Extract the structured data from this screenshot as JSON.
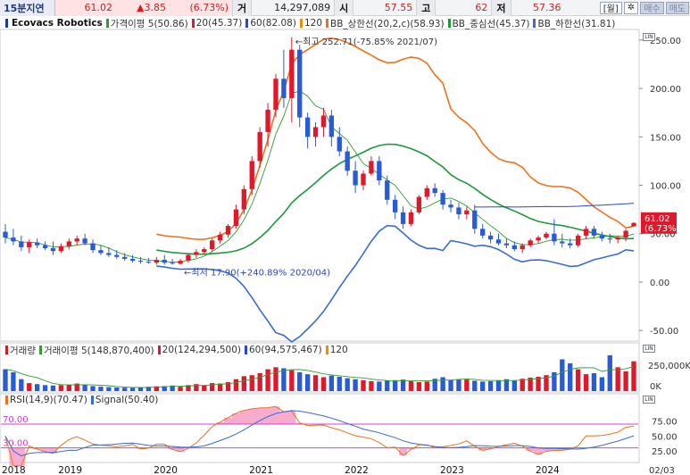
{
  "header": {
    "period": "15분지연",
    "price": "61.02",
    "change": "▲3.85",
    "change_pct": "(6.73%)",
    "volume_label": "거",
    "volume": "14,297,089",
    "open_label": "시",
    "open": "57.55",
    "high_label": "고",
    "high": "62",
    "low_label": "저",
    "low": "57.36",
    "period_button": "[월]",
    "settings_icon": "gear-icon",
    "buy_button": "매수",
    "sell_button": "매도"
  },
  "price_legend": {
    "title": "Ecovacs Robotics",
    "items": [
      {
        "label": "가격이평 5(50.86)",
        "color": "#2e9e2e"
      },
      {
        "label": "20(45.37)",
        "color": "#e0182b"
      },
      {
        "label": "60(82.08)",
        "color": "#2a44d6"
      },
      {
        "label": "120",
        "color": "#f08c00"
      },
      {
        "label": "BB_상한선(20,2,c)(58.93)",
        "color": "#f07020"
      },
      {
        "label": "BB_중심선(45.37)",
        "color": "#1b9a3a"
      },
      {
        "label": "BB_하한선(31.81)",
        "color": "#3a6ad8"
      }
    ]
  },
  "volume_legend": {
    "items": [
      {
        "label": "거래량",
        "color": "#d21f1f"
      },
      {
        "label": "거래이평 5(148,870,400)",
        "color": "#2e9e2e"
      },
      {
        "label": "20(124,294,500)",
        "color": "#e0182b"
      },
      {
        "label": "60(94,575,467)",
        "color": "#2a44d6"
      },
      {
        "label": "120",
        "color": "#f08c00"
      }
    ]
  },
  "rsi_legend": {
    "items": [
      {
        "label": "RSI(14,9)(70.47)",
        "color": "#f07020"
      },
      {
        "label": "Signal(50.40)",
        "color": "#3a6ad8"
      }
    ]
  },
  "annotations": {
    "high": "←최고 252.71(-75.85% 2021/07)",
    "low": "←최저 17.90(+240.89% 2020/04)",
    "current_price": "61.02",
    "current_pct": "(6.73%)"
  },
  "axes": {
    "price_ticks": [
      "250.00",
      "200.00",
      "150.00",
      "100.00",
      "50.00",
      "0.00",
      "-50.00"
    ],
    "volume_ticks": [
      "250,000K",
      "0K"
    ],
    "rsi_ticks": [
      "75.00",
      "50.00",
      "25.00"
    ],
    "rsi_levels": [
      "70.00",
      "30.00"
    ],
    "years": [
      "2018",
      "2019",
      "2020",
      "2021",
      "2022",
      "2023",
      "2024"
    ],
    "date_end": "02/03",
    "axis_buttons": [
      "LIN",
      "LIN",
      "LIN"
    ]
  },
  "chart_data": {
    "type": "candlestick",
    "title": "Ecovacs Robotics",
    "interval": "monthly",
    "start": "2018-05",
    "y_range": [
      -60,
      260
    ],
    "candles": [
      [
        52,
        60,
        40,
        46
      ],
      [
        46,
        55,
        38,
        42
      ],
      [
        42,
        48,
        32,
        36
      ],
      [
        36,
        44,
        30,
        41
      ],
      [
        41,
        45,
        35,
        38
      ],
      [
        38,
        42,
        33,
        35
      ],
      [
        35,
        42,
        28,
        32
      ],
      [
        32,
        40,
        30,
        37
      ],
      [
        37,
        45,
        34,
        42
      ],
      [
        42,
        48,
        38,
        45
      ],
      [
        45,
        50,
        38,
        40
      ],
      [
        40,
        44,
        30,
        33
      ],
      [
        33,
        38,
        28,
        30
      ],
      [
        30,
        36,
        26,
        28
      ],
      [
        28,
        33,
        24,
        26
      ],
      [
        26,
        30,
        22,
        24
      ],
      [
        24,
        28,
        20,
        22
      ],
      [
        22,
        26,
        19,
        21
      ],
      [
        21,
        25,
        19,
        20
      ],
      [
        20,
        26,
        18,
        23
      ],
      [
        23,
        28,
        18,
        20
      ],
      [
        20,
        24,
        18,
        19
      ],
      [
        19,
        24,
        17.9,
        22
      ],
      [
        22,
        30,
        20,
        28
      ],
      [
        28,
        34,
        25,
        31
      ],
      [
        31,
        36,
        29,
        34
      ],
      [
        34,
        45,
        32,
        43
      ],
      [
        43,
        52,
        40,
        49
      ],
      [
        49,
        60,
        46,
        58
      ],
      [
        58,
        80,
        55,
        75
      ],
      [
        75,
        100,
        70,
        96
      ],
      [
        96,
        130,
        90,
        125
      ],
      [
        125,
        160,
        118,
        155
      ],
      [
        155,
        185,
        140,
        178
      ],
      [
        178,
        215,
        170,
        210
      ],
      [
        210,
        240,
        180,
        190
      ],
      [
        190,
        252.71,
        165,
        240
      ],
      [
        240,
        245,
        160,
        170
      ],
      [
        170,
        175,
        138,
        150
      ],
      [
        150,
        165,
        140,
        160
      ],
      [
        160,
        180,
        150,
        172
      ],
      [
        172,
        178,
        140,
        150
      ],
      [
        150,
        160,
        130,
        135
      ],
      [
        135,
        140,
        110,
        115
      ],
      [
        115,
        125,
        92,
        100
      ],
      [
        100,
        115,
        95,
        112
      ],
      [
        112,
        130,
        110,
        125
      ],
      [
        125,
        130,
        100,
        105
      ],
      [
        105,
        110,
        80,
        85
      ],
      [
        85,
        90,
        65,
        72
      ],
      [
        72,
        78,
        55,
        60
      ],
      [
        60,
        75,
        58,
        72
      ],
      [
        72,
        90,
        70,
        88
      ],
      [
        88,
        100,
        85,
        97
      ],
      [
        97,
        102,
        88,
        92
      ],
      [
        92,
        95,
        75,
        80
      ],
      [
        80,
        85,
        72,
        77
      ],
      [
        77,
        82,
        65,
        70
      ],
      [
        70,
        78,
        65,
        74
      ],
      [
        74,
        80,
        50,
        55
      ],
      [
        55,
        60,
        45,
        48
      ],
      [
        48,
        52,
        40,
        44
      ],
      [
        44,
        50,
        38,
        40
      ],
      [
        40,
        45,
        35,
        38
      ],
      [
        38,
        42,
        32,
        34
      ],
      [
        34,
        40,
        30,
        38
      ],
      [
        38,
        45,
        36,
        43
      ],
      [
        43,
        48,
        40,
        46
      ],
      [
        46,
        52,
        44,
        50
      ],
      [
        50,
        65,
        38,
        42
      ],
      [
        42,
        50,
        36,
        40
      ],
      [
        40,
        45,
        35,
        38
      ],
      [
        38,
        50,
        36,
        48
      ],
      [
        48,
        58,
        45,
        55
      ],
      [
        55,
        58,
        45,
        48
      ],
      [
        48,
        52,
        42,
        45
      ],
      [
        45,
        50,
        40,
        44
      ],
      [
        44,
        48,
        40,
        46
      ],
      [
        46,
        55,
        42,
        53
      ],
      [
        57.55,
        62,
        57.36,
        61.02
      ]
    ],
    "ma5": {
      "last": 50.86
    },
    "ma20": {
      "last": 45.37
    },
    "ma60": {
      "last": 82.08
    },
    "bb_upper": {
      "last": 58.93
    },
    "bb_middle": {
      "last": 45.37
    },
    "bb_lower": {
      "last": 31.81
    },
    "volume": [
      110,
      95,
      60,
      40,
      35,
      30,
      28,
      30,
      32,
      38,
      30,
      25,
      22,
      20,
      18,
      17,
      16,
      20,
      22,
      24,
      25,
      28,
      22,
      30,
      35,
      28,
      40,
      38,
      45,
      60,
      75,
      80,
      90,
      110,
      120,
      115,
      105,
      95,
      85,
      80,
      70,
      78,
      72,
      65,
      60,
      55,
      50,
      48,
      52,
      55,
      58,
      50,
      45,
      48,
      62,
      70,
      55,
      60,
      58,
      52,
      48,
      50,
      55,
      60,
      52,
      62,
      68,
      72,
      80,
      95,
      160,
      140,
      110,
      85,
      90,
      70,
      180,
      120,
      100,
      150
    ],
    "volume_ylim": [
      0,
      400000
    ],
    "rsi": {
      "last": 70.47,
      "signal_last": 50.4,
      "upper": 70,
      "lower": 30
    }
  }
}
